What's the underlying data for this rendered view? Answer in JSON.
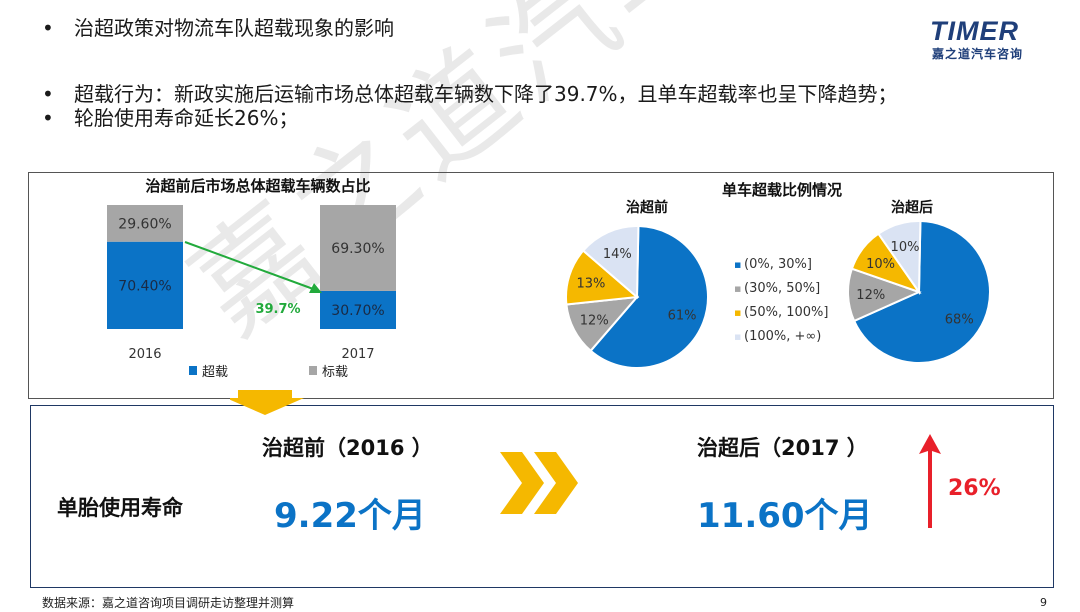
{
  "header": {
    "title": "治超政策对物流车队超载现象的影响",
    "bullet_symbol": "•",
    "bullets": [
      "超载行为：新政实施后运输市场总体超载车辆数下降了39.7%，且单车超载率也呈下降趋势；",
      "轮胎使用寿命延长26%；"
    ]
  },
  "logo": {
    "wordmark": "TIMER",
    "subtitle": "嘉之道汽车咨询"
  },
  "watermark": "嘉之道汽车咨询",
  "colors": {
    "blue": "#0b73c6",
    "gray": "#a6a6a6",
    "yellow": "#f5b800",
    "light": "#dae3f3",
    "green": "#22aa3c",
    "red": "#e8202a",
    "navy": "#1f3f7a"
  },
  "chart_data": [
    {
      "type": "bar",
      "stacked": true,
      "title": "治超前后市场总体超载车辆数占比",
      "categories": [
        "2016",
        "2017"
      ],
      "series": [
        {
          "name": "超载",
          "values": [
            70.4,
            30.7
          ],
          "labels": [
            "70.40%",
            "30.70%"
          ],
          "color": "#0b73c6"
        },
        {
          "name": "标载",
          "values": [
            29.6,
            69.3
          ],
          "labels": [
            "29.60%",
            "69.30%"
          ],
          "color": "#a6a6a6"
        }
      ],
      "ylim": [
        0,
        100
      ],
      "annotation": "39.7%",
      "legend_position": "bottom"
    },
    {
      "type": "pie",
      "title": "单车超载比例情况",
      "legend": [
        "(0%, 30%]",
        "(30%, 50%]",
        "(50%, 100%]",
        "(100%, +∞)"
      ],
      "legend_marker": "▪",
      "pies": [
        {
          "name": "治超前",
          "values": [
            61,
            12,
            13,
            14
          ],
          "labels": [
            "61%",
            "12%",
            "13%",
            "14%"
          ]
        },
        {
          "name": "治超后",
          "values": [
            68,
            12,
            10,
            10
          ],
          "labels": [
            "68%",
            "12%",
            "10%",
            "10%"
          ]
        }
      ]
    }
  ],
  "comparison": {
    "label": "单胎使用寿命",
    "before_title": "治超前（2016 ）",
    "before_value": "9.22个月",
    "after_title": "治超后（2017 ）",
    "after_value": "11.60个月",
    "increase": "26%"
  },
  "footer": {
    "source": "数据来源：嘉之道咨询项目调研走访整理并测算",
    "page": "9"
  }
}
